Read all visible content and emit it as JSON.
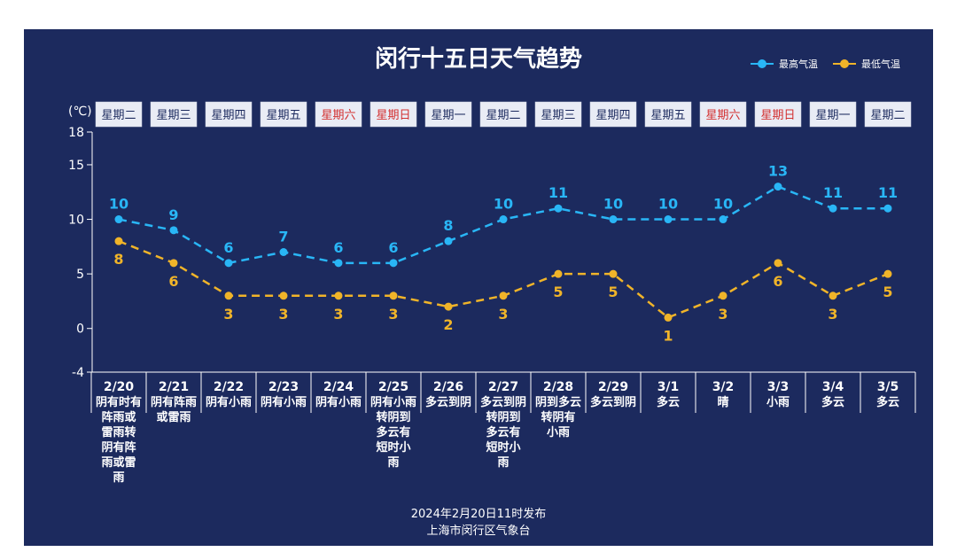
{
  "title": "闵行十五日天气趋势",
  "unit_label": "(℃)",
  "footer": {
    "line1": "2024年2月20日11时发布",
    "line2": "上海市闵行区气象台"
  },
  "colors": {
    "background": "#1c2a5e",
    "high": "#29b6f6",
    "low": "#f0b429",
    "weekend": "#d32f2f",
    "weekday": "#1c2a5e",
    "weekday_box": "#e9ecf5"
  },
  "chart_data": {
    "type": "line",
    "title": "闵行十五日天气趋势",
    "ylim": [
      -4,
      18
    ],
    "yticks": [
      -4,
      0,
      5,
      10,
      15,
      18
    ],
    "legend_position": "top-right",
    "grid": false,
    "categories": [
      "2/20",
      "2/21",
      "2/22",
      "2/23",
      "2/24",
      "2/25",
      "2/26",
      "2/27",
      "2/28",
      "2/29",
      "3/1",
      "3/2",
      "3/3",
      "3/4",
      "3/5"
    ],
    "weekdays": [
      "星期二",
      "星期三",
      "星期四",
      "星期五",
      "星期六",
      "星期日",
      "星期一",
      "星期二",
      "星期三",
      "星期四",
      "星期五",
      "星期六",
      "星期日",
      "星期一",
      "星期二"
    ],
    "weekend_flags": [
      false,
      false,
      false,
      false,
      true,
      true,
      false,
      false,
      false,
      false,
      false,
      true,
      true,
      false,
      false
    ],
    "conditions": [
      [
        "阴有时有",
        "阵雨或",
        "雷雨转",
        "阴有阵",
        "雨或雷",
        "雨"
      ],
      [
        "阴有阵雨",
        "或雷雨"
      ],
      [
        "阴有小雨"
      ],
      [
        "阴有小雨"
      ],
      [
        "阴有小雨"
      ],
      [
        "阴有小雨",
        "转阴到",
        "多云有",
        "短时小",
        "雨"
      ],
      [
        "多云到阴"
      ],
      [
        "多云到阴",
        "转阴到",
        "多云有",
        "短时小",
        "雨"
      ],
      [
        "阴到多云",
        "转阴有",
        "小雨"
      ],
      [
        "多云到阴"
      ],
      [
        "多云"
      ],
      [
        "晴"
      ],
      [
        "小雨"
      ],
      [
        "多云"
      ],
      [
        "多云"
      ]
    ],
    "series": [
      {
        "name": "最高气温",
        "values": [
          10,
          9,
          6,
          7,
          6,
          6,
          8,
          10,
          11,
          10,
          10,
          10,
          13,
          11,
          11
        ]
      },
      {
        "name": "最低气温",
        "values": [
          8,
          6,
          3,
          3,
          3,
          3,
          2,
          3,
          5,
          5,
          1,
          3,
          6,
          3,
          5
        ]
      }
    ]
  }
}
